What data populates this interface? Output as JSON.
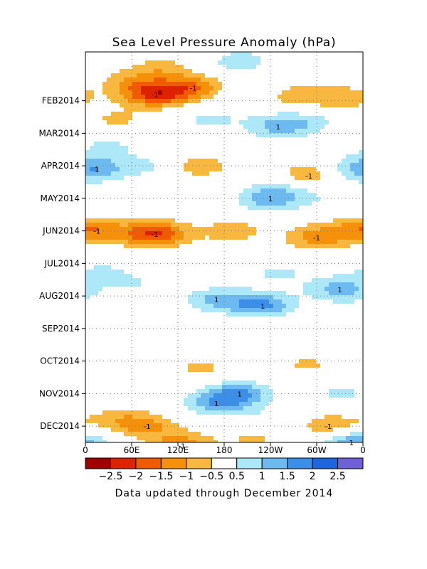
{
  "chart_data": {
    "type": "heatmap",
    "title": "Sea Level Pressure Anomaly (hPa)",
    "footer": "Data updated through December 2014",
    "x_tick_labels": [
      "0",
      "60E",
      "120E",
      "180",
      "120W",
      "60W",
      "0"
    ],
    "x_ticks_deg": [
      0,
      60,
      120,
      180,
      240,
      300,
      360
    ],
    "y_tick_labels": [
      "FEB2014",
      "MAR2014",
      "APR2014",
      "MAY2014",
      "JUN2014",
      "JUL2014",
      "AUG2014",
      "SEP2014",
      "OCT2014",
      "NOV2014",
      "DEC2014"
    ],
    "y_ticks_month": [
      2,
      3,
      4,
      5,
      6,
      7,
      8,
      9,
      10,
      11,
      12
    ],
    "xlim": [
      0,
      360
    ],
    "ylim_month": [
      0.5,
      12.5
    ],
    "grid": true,
    "colorbar": {
      "tick_labels": [
        "-2.5",
        "-2",
        "-1.5",
        "-1",
        "-0.5",
        "0.5",
        "1",
        "1.5",
        "2",
        "2.5"
      ],
      "colors": [
        "#a00000",
        "#dd2200",
        "#f05a00",
        "#f5900a",
        "#f8b840",
        "#ffffff",
        "#ade8f8",
        "#6cbaf0",
        "#3c8ee6",
        "#1e64dc",
        "#7060d8"
      ]
    },
    "contour_levels": [
      -2.5,
      -2,
      -1.5,
      -1,
      -0.5,
      0,
      0.5,
      1,
      1.5,
      2,
      2.5
    ],
    "anomaly_features": [
      {
        "lon": 200,
        "month": 0.8,
        "value": 0.8
      },
      {
        "lon": 100,
        "month": 1.0,
        "value": -0.7
      },
      {
        "lon": 60,
        "month": 1.4,
        "value": -0.7
      },
      {
        "lon": 140,
        "month": 1.6,
        "value": -1.4
      },
      {
        "lon": 90,
        "month": 1.8,
        "value": -2.0
      },
      {
        "lon": 210,
        "month": 1.9,
        "value": 0.6
      },
      {
        "lon": 270,
        "month": 1.9,
        "value": -0.9
      },
      {
        "lon": 335,
        "month": 1.9,
        "value": -0.8
      },
      {
        "lon": 40,
        "month": 2.6,
        "value": -0.6
      },
      {
        "lon": 250,
        "month": 2.8,
        "value": 1.1
      },
      {
        "lon": 290,
        "month": 2.6,
        "value": 0.6
      },
      {
        "lon": 160,
        "month": 2.6,
        "value": 0.6
      },
      {
        "lon": 30,
        "month": 3.4,
        "value": 0.6
      },
      {
        "lon": 15,
        "month": 4.1,
        "value": 1.1
      },
      {
        "lon": 90,
        "month": 4.0,
        "value": 0.6
      },
      {
        "lon": 145,
        "month": 4.0,
        "value": -0.9
      },
      {
        "lon": 290,
        "month": 4.3,
        "value": -1.0
      },
      {
        "lon": 345,
        "month": 4.1,
        "value": 0.6
      },
      {
        "lon": 240,
        "month": 5.0,
        "value": 1.3
      },
      {
        "lon": 270,
        "month": 4.7,
        "value": 0.5
      },
      {
        "lon": 330,
        "month": 5.1,
        "value": 0.4
      },
      {
        "lon": 15,
        "month": 6.0,
        "value": -1.0
      },
      {
        "lon": 90,
        "month": 6.1,
        "value": -2.1
      },
      {
        "lon": 190,
        "month": 6.0,
        "value": -0.8
      },
      {
        "lon": 300,
        "month": 6.2,
        "value": -1.2
      },
      {
        "lon": 350,
        "month": 5.9,
        "value": -0.6
      },
      {
        "lon": 20,
        "month": 7.3,
        "value": 0.6
      },
      {
        "lon": 70,
        "month": 7.6,
        "value": 0.5
      },
      {
        "lon": 120,
        "month": 7.3,
        "value": -0.5
      },
      {
        "lon": 250,
        "month": 7.3,
        "value": 0.6
      },
      {
        "lon": 330,
        "month": 7.8,
        "value": 1.2
      },
      {
        "lon": 230,
        "month": 8.3,
        "value": 1.6
      },
      {
        "lon": 170,
        "month": 8.1,
        "value": 1.1
      },
      {
        "lon": 110,
        "month": 8.9,
        "value": 0.4
      },
      {
        "lon": 20,
        "month": 8.6,
        "value": 0.5
      },
      {
        "lon": 60,
        "month": 9.1,
        "value": -0.6
      },
      {
        "lon": 230,
        "month": 9.0,
        "value": -0.5
      },
      {
        "lon": 10,
        "month": 10.1,
        "value": 0.5
      },
      {
        "lon": 150,
        "month": 10.2,
        "value": -0.6
      },
      {
        "lon": 290,
        "month": 10.1,
        "value": -0.6
      },
      {
        "lon": 200,
        "month": 11.0,
        "value": 1.4
      },
      {
        "lon": 170,
        "month": 11.3,
        "value": 1.2
      },
      {
        "lon": 330,
        "month": 11.0,
        "value": 0.6
      },
      {
        "lon": 80,
        "month": 12.0,
        "value": -1.0
      },
      {
        "lon": 40,
        "month": 11.8,
        "value": -0.7
      },
      {
        "lon": 250,
        "month": 11.8,
        "value": 0.5
      },
      {
        "lon": 315,
        "month": 12.0,
        "value": -1.0
      },
      {
        "lon": 345,
        "month": 12.5,
        "value": 1.5
      },
      {
        "lon": 125,
        "month": 12.6,
        "value": -1.3
      },
      {
        "lon": 220,
        "month": 12.4,
        "value": -0.6
      }
    ]
  }
}
